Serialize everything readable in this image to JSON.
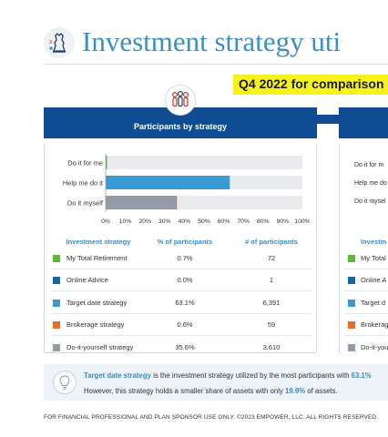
{
  "page": {
    "title": "Investment strategy uti",
    "highlight": "Q4 2022 for comparison o",
    "footer": "FOR FINANCIAL PROFESSIONAL AND PLAN SPONSOR USE ONLY. ©2023 EMPOWER, LLC. ALL RIGHTS RESERVED."
  },
  "left_panel": {
    "banner_label": "Participants by strategy",
    "table_headers": [
      "Investment strategy",
      "% of participants",
      "# of participants"
    ],
    "rows": [
      {
        "name": "My Total Retirement",
        "pct": "0.7%",
        "count": "72",
        "color": "#5cb83c"
      },
      {
        "name": "Online Advice",
        "pct": "0.0%",
        "count": "1",
        "color": "#1a64ae"
      },
      {
        "name": "Target date strategy",
        "pct": "63.1%",
        "count": "6,391",
        "color": "#3a9ad2"
      },
      {
        "name": "Brokerage strategy",
        "pct": "0.6%",
        "count": "59",
        "color": "#ea6a2f"
      },
      {
        "name": "Do-it-yourself strategy",
        "pct": "35.6%",
        "count": "3,610",
        "color": "#939ca6"
      }
    ]
  },
  "chart_data": {
    "type": "bar",
    "orientation": "horizontal",
    "categories": [
      "Do it for me",
      "Help me do it",
      "Do it myself"
    ],
    "stacks": [
      [
        {
          "label": "My Total Retirement",
          "value": 0.7,
          "color": "#5cb83c"
        },
        {
          "label": "Online Advice",
          "value": 0.0,
          "color": "#1a64ae"
        }
      ],
      [
        {
          "label": "Target date strategy",
          "value": 63.1,
          "color": "#3a9ad2"
        }
      ],
      [
        {
          "label": "Do-it-yourself strategy",
          "value": 35.6,
          "color": "#939ca6"
        },
        {
          "label": "Brokerage strategy",
          "value": 0.6,
          "color": "#ea6a2f"
        }
      ]
    ],
    "x_ticks": [
      "0%",
      "10%",
      "20%",
      "30%",
      "40%",
      "50%",
      "60%",
      "70%",
      "80%",
      "90%",
      "100%"
    ],
    "xlim": [
      0,
      100
    ],
    "track_color": "#e9ebee"
  },
  "right_panel": {
    "chart_labels": [
      "Do it for m",
      "Help me do",
      "Do it mysel"
    ],
    "header": "Investm",
    "rows": [
      {
        "name": "My Total",
        "color": "#5cb83c"
      },
      {
        "name": "Online A",
        "color": "#1a64ae"
      },
      {
        "name": "Target d",
        "color": "#3a9ad2"
      },
      {
        "name": "Brokerag",
        "color": "#ea6a2f"
      },
      {
        "name": "Do-it-you",
        "color": "#939ca6"
      }
    ]
  },
  "callout": {
    "line1_lead": "Target date strategy",
    "line1_text": " is the investment strategy utilized by the most participants with ",
    "line1_value": "63.1%",
    "line2_text": "However, this strategy holds a smaller share of assets with only ",
    "line2_value": "19.9%",
    "line2_tail": " of assets."
  }
}
